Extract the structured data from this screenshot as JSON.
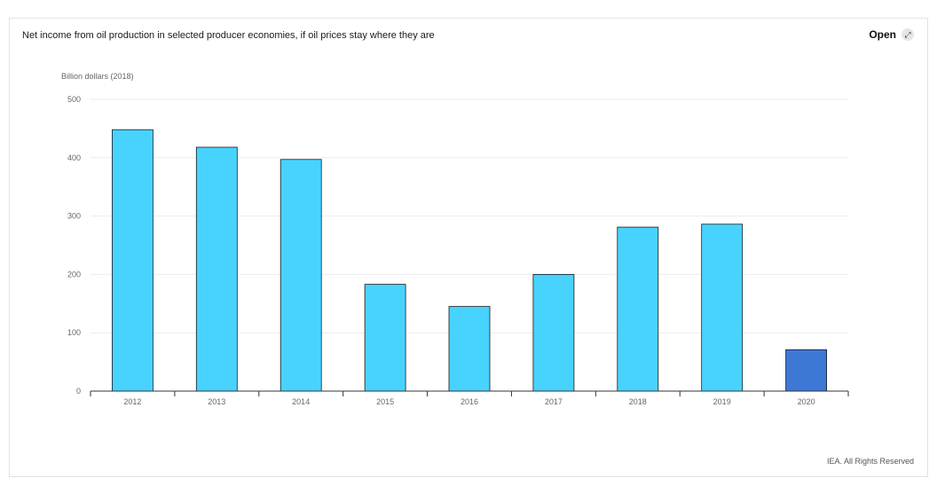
{
  "header": {
    "title": "Net income from oil production in selected producer economies, if oil prices stay where they are",
    "open_label": "Open",
    "open_icon": "external-expand-icon"
  },
  "footer": {
    "credit": "IEA. All Rights Reserved"
  },
  "colors": {
    "bar": "#48d3ff",
    "bar_highlight": "#3d78d6",
    "bar_stroke": "#1a1a1a"
  },
  "chart_data": {
    "type": "bar",
    "title": "Net income from oil production in selected producer economies, if oil prices stay where they are",
    "ylabel": "Billion dollars (2018)",
    "xlabel": "",
    "categories": [
      "2012",
      "2013",
      "2014",
      "2015",
      "2016",
      "2017",
      "2018",
      "2019",
      "2020"
    ],
    "values": [
      448,
      418,
      397,
      183,
      145,
      200,
      281,
      286,
      71
    ],
    "highlighted_category": "2020",
    "yticks": [
      0,
      100,
      200,
      300,
      400,
      500
    ],
    "ylim": [
      0,
      500
    ],
    "grid": true,
    "legend": "none"
  }
}
